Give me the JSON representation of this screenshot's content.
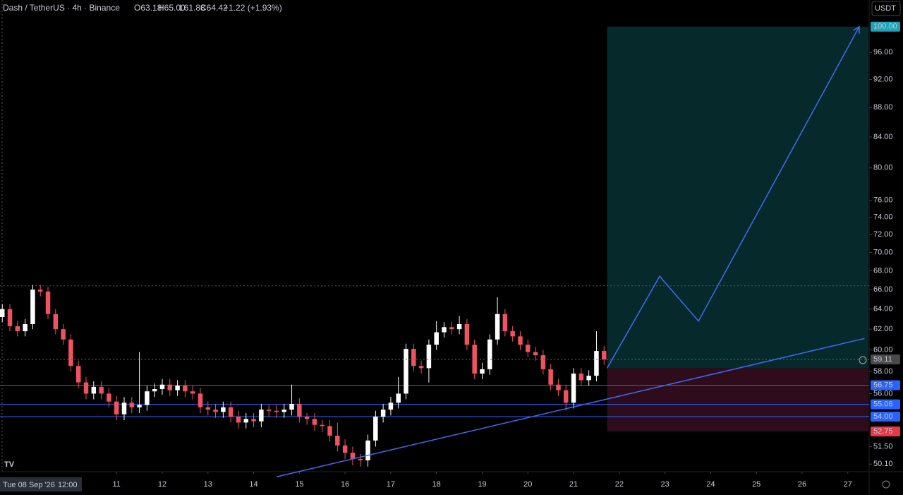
{
  "header": {
    "symbol": "Dash / TetherUS · 4h · Binance",
    "ohlc": [
      "O63.18",
      "H65.00",
      "L61.88",
      "C64.42",
      "+1.22 (+1.93%)"
    ],
    "currency": "USDT"
  },
  "chart_data": {
    "type": "candlestick",
    "log_scale": true,
    "up_color": "#ffffff",
    "down_color": "#ef5362",
    "crosshair_label": [
      "Tue 08 Sep '26",
      "12:00"
    ],
    "xlim": [
      -0.3,
      113.8
    ],
    "ylim": [
      49.5,
      104.3
    ],
    "xticks": [
      {
        "value": 15,
        "label": "11"
      },
      {
        "value": 21,
        "label": "12"
      },
      {
        "value": 27,
        "label": "13"
      },
      {
        "value": 33,
        "label": "14"
      },
      {
        "value": 39,
        "label": "15"
      },
      {
        "value": 45,
        "label": "16"
      },
      {
        "value": 51,
        "label": "17"
      },
      {
        "value": 57,
        "label": "18"
      },
      {
        "value": 63,
        "label": "19"
      },
      {
        "value": 69,
        "label": "20"
      },
      {
        "value": 75,
        "label": "21"
      },
      {
        "value": 81,
        "label": "22"
      },
      {
        "value": 87,
        "label": "23"
      },
      {
        "value": 93,
        "label": "24"
      },
      {
        "value": 99,
        "label": "25"
      },
      {
        "value": 105,
        "label": "26"
      },
      {
        "value": 111,
        "label": "27"
      }
    ],
    "yticks": [
      {
        "value": 96,
        "label": "96.00"
      },
      {
        "value": 92,
        "label": "92.00"
      },
      {
        "value": 88,
        "label": "88.00"
      },
      {
        "value": 84,
        "label": "84.00"
      },
      {
        "value": 80,
        "label": "80.00"
      },
      {
        "value": 76,
        "label": "76.00"
      },
      {
        "value": 74,
        "label": "74.00"
      },
      {
        "value": 72,
        "label": "72.00"
      },
      {
        "value": 70,
        "label": "70.00"
      },
      {
        "value": 68,
        "label": "68.00"
      },
      {
        "value": 66,
        "label": "66.00"
      },
      {
        "value": 64,
        "label": "64.00"
      },
      {
        "value": 62,
        "label": "62.00"
      },
      {
        "value": 60,
        "label": "60.00"
      },
      {
        "value": 58,
        "label": "58.00"
      },
      {
        "value": 56,
        "label": "56.00"
      },
      {
        "value": 51.5,
        "label": "51.50"
      },
      {
        "value": 50.1,
        "label": "50.10"
      }
    ],
    "open": [
      63.2,
      64.0,
      62.3,
      61.8,
      62.5,
      66.0,
      65.8,
      63.5,
      62.0,
      61.0,
      58.5,
      57.0,
      56.0,
      56.6,
      56.0,
      55.3,
      54.2,
      55.2,
      54.8,
      55.0,
      56.2,
      56.4,
      56.8,
      56.3,
      56.7,
      56.2,
      56.0,
      54.8,
      54.6,
      54.4,
      54.8,
      54.0,
      53.5,
      53.8,
      53.6,
      54.6,
      54.5,
      54.4,
      54.6,
      55.1,
      54.0,
      53.8,
      53.3,
      53.2,
      52.4,
      51.6,
      51.0,
      50.5,
      50.4,
      52.0,
      54.0,
      54.6,
      55.2,
      56.0,
      60.1,
      58.5,
      58.3,
      60.5,
      61.7,
      62.2,
      62.0,
      62.5,
      60.5,
      57.8,
      58.2,
      61.0,
      63.5,
      61.8,
      61.3,
      60.5,
      59.8,
      59.5,
      58.2,
      56.8,
      56.3,
      55.2,
      57.8,
      57.2,
      57.6,
      59.9
    ],
    "high": [
      64.5,
      64.5,
      62.8,
      63.0,
      66.5,
      66.5,
      66.3,
      64.0,
      62.5,
      61.5,
      59.0,
      57.5,
      57.1,
      57.1,
      56.5,
      55.8,
      55.7,
      55.7,
      59.8,
      56.7,
      56.9,
      57.3,
      57.3,
      57.2,
      57.2,
      56.7,
      56.5,
      55.3,
      55.1,
      55.3,
      55.3,
      54.5,
      54.3,
      54.3,
      55.1,
      55.0,
      55.0,
      55.1,
      56.8,
      55.6,
      54.3,
      54.3,
      53.7,
      53.7,
      53.5,
      52.1,
      51.5,
      50.9,
      52.5,
      54.5,
      55.1,
      55.7,
      57.5,
      60.6,
      60.6,
      59.0,
      61.0,
      62.8,
      62.7,
      62.7,
      63.3,
      63.0,
      61.0,
      58.8,
      61.5,
      65.2,
      64.0,
      62.3,
      61.8,
      61.0,
      60.3,
      60.0,
      58.7,
      57.3,
      56.8,
      58.3,
      58.3,
      58.1,
      61.8,
      60.4
    ],
    "low": [
      62.7,
      61.8,
      61.3,
      61.3,
      62.0,
      65.3,
      63.0,
      61.5,
      60.5,
      58.0,
      56.5,
      55.5,
      55.5,
      55.5,
      54.8,
      53.7,
      53.7,
      54.3,
      54.3,
      54.5,
      55.7,
      55.9,
      55.8,
      55.8,
      55.7,
      55.5,
      54.3,
      54.1,
      53.9,
      53.9,
      53.5,
      53.0,
      53.0,
      53.1,
      53.1,
      54.0,
      53.9,
      53.9,
      54.1,
      53.5,
      53.3,
      52.8,
      52.7,
      51.9,
      51.1,
      50.5,
      50.0,
      49.9,
      49.9,
      51.5,
      53.5,
      54.1,
      54.7,
      55.5,
      58.0,
      57.8,
      57.0,
      60.0,
      61.2,
      61.5,
      61.5,
      60.0,
      57.3,
      57.3,
      57.7,
      60.5,
      61.3,
      60.8,
      60.0,
      59.3,
      59.0,
      57.7,
      56.3,
      55.8,
      54.5,
      54.7,
      56.7,
      56.7,
      57.1,
      58.6
    ],
    "close": [
      64.0,
      62.3,
      61.8,
      62.5,
      66.0,
      65.8,
      63.5,
      62.0,
      61.0,
      58.5,
      57.0,
      56.0,
      56.6,
      56.0,
      55.3,
      54.2,
      55.2,
      54.8,
      55.0,
      56.2,
      56.4,
      56.8,
      56.3,
      56.7,
      56.2,
      56.0,
      54.8,
      54.6,
      54.4,
      54.8,
      54.0,
      53.5,
      53.8,
      53.6,
      54.6,
      54.5,
      54.4,
      54.6,
      55.1,
      54.0,
      53.8,
      53.3,
      53.2,
      52.4,
      51.6,
      51.0,
      50.5,
      50.4,
      52.0,
      54.0,
      54.6,
      55.2,
      56.0,
      60.1,
      58.5,
      58.3,
      60.5,
      61.7,
      62.2,
      62.0,
      62.5,
      60.5,
      57.8,
      58.2,
      61.0,
      63.5,
      61.8,
      61.3,
      60.5,
      59.8,
      59.5,
      58.2,
      56.8,
      56.3,
      55.2,
      57.8,
      57.2,
      57.6,
      59.9,
      59.1
    ],
    "levels": [
      {
        "value": 56.75,
        "label": "56.75",
        "color": "#2962ff"
      },
      {
        "value": 55.06,
        "label": "55.06",
        "color": "#2962ff"
      },
      {
        "value": 54.0,
        "label": "54.00",
        "color": "#2962ff"
      }
    ],
    "dotted_levels": [
      66.4
    ],
    "last_price": {
      "value": 59.11,
      "label": "59.11",
      "color": "#4a4a4a"
    },
    "position": {
      "x": [
        79.4,
        113.7
      ],
      "entry": 58.3,
      "target": {
        "value": 100,
        "label": "100.00",
        "color": "#1fa3b8"
      },
      "stop": {
        "value": 52.75,
        "label": "52.75",
        "color": "#e53945"
      }
    },
    "projection": {
      "x": [
        79.4,
        86.3,
        91.4,
        112.5
      ],
      "y": [
        58.3,
        67.4,
        62.8,
        100
      ],
      "color": "#3d6cf0"
    },
    "trendline": {
      "x": [
        36,
        113.2
      ],
      "y": [
        49.1,
        61.1
      ],
      "color": "#3d6cf0"
    }
  }
}
